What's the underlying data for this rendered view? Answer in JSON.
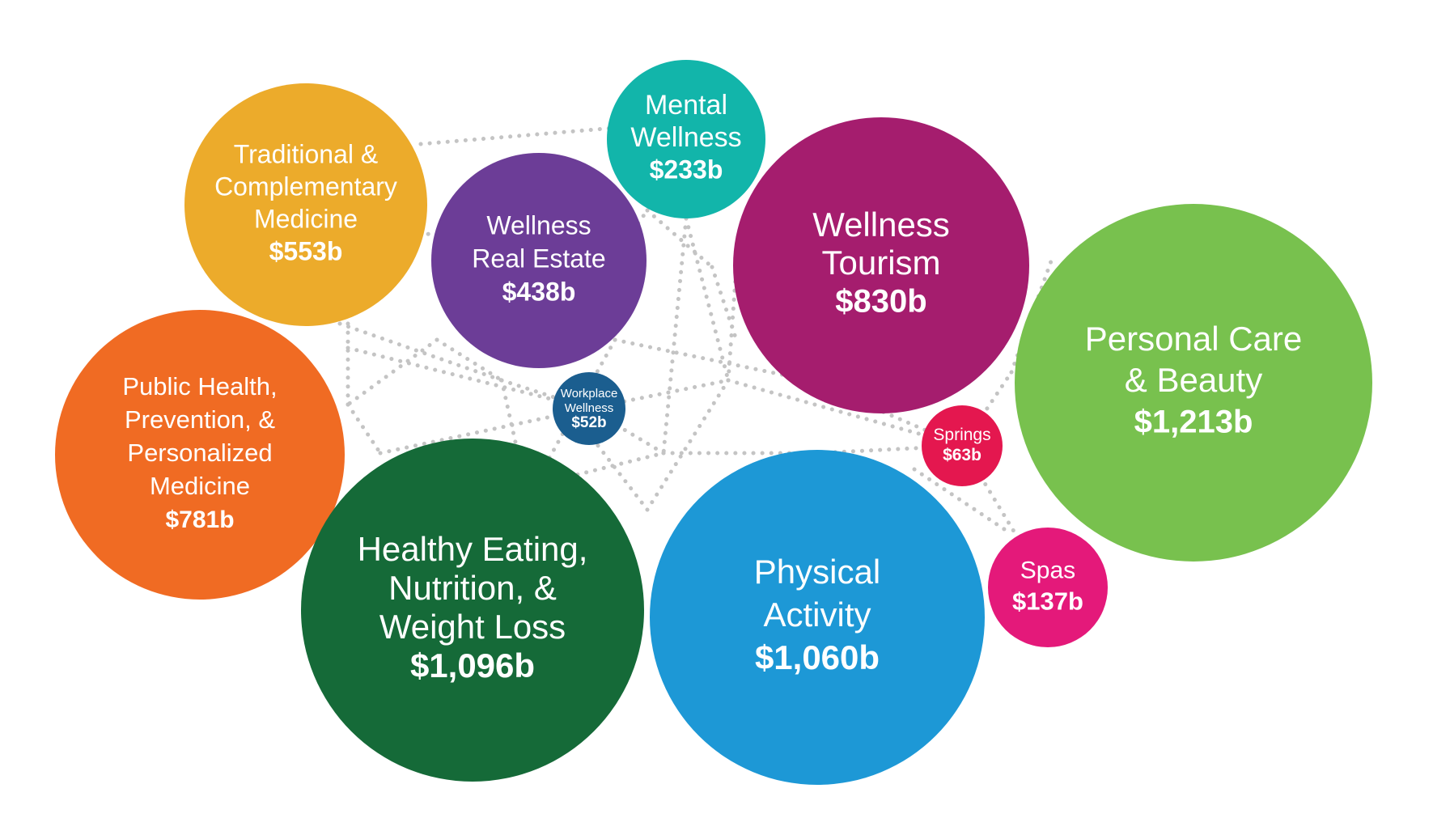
{
  "chart_data": {
    "type": "bubble",
    "title": "",
    "unit": "billions USD",
    "series": [
      {
        "key": "traditional",
        "label_lines": [
          "Traditional &",
          "Complementary",
          "Medicine"
        ],
        "value_label": "$553b",
        "value": 553,
        "color": "#ECAB2B"
      },
      {
        "key": "mental",
        "label_lines": [
          "Mental",
          "Wellness"
        ],
        "value_label": "$233b",
        "value": 233,
        "color": "#12B5AA"
      },
      {
        "key": "real-estate",
        "label_lines": [
          "Wellness",
          "Real Estate"
        ],
        "value_label": "$438b",
        "value": 438,
        "color": "#6C3D97"
      },
      {
        "key": "tourism",
        "label_lines": [
          "Wellness",
          "Tourism"
        ],
        "value_label": "$830b",
        "value": 830,
        "color": "#A51D6E"
      },
      {
        "key": "personal-care",
        "label_lines": [
          "Personal Care",
          "& Beauty"
        ],
        "value_label": "$1,213b",
        "value": 1213,
        "color": "#78C14E"
      },
      {
        "key": "public-health",
        "label_lines": [
          "Public Health,",
          "Prevention, &",
          "Personalized",
          "Medicine"
        ],
        "value_label": "$781b",
        "value": 781,
        "color": "#F06B23"
      },
      {
        "key": "workplace",
        "label_lines": [
          "Workplace",
          "Wellness"
        ],
        "value_label": "$52b",
        "value": 52,
        "color": "#1B5E8F"
      },
      {
        "key": "springs",
        "label_lines": [
          "Springs"
        ],
        "value_label": "$63b",
        "value": 63,
        "color": "#E4174F"
      },
      {
        "key": "healthy-eating",
        "label_lines": [
          "Healthy Eating,",
          "Nutrition, &",
          "Weight Loss"
        ],
        "value_label": "$1,096b",
        "value": 1096,
        "color": "#156A38"
      },
      {
        "key": "physical",
        "label_lines": [
          "Physical",
          "Activity"
        ],
        "value_label": "$1,060b",
        "value": 1060,
        "color": "#1D98D6"
      },
      {
        "key": "spas",
        "label_lines": [
          "Spas"
        ],
        "value_label": "$137b",
        "value": 137,
        "color": "#E4197A"
      }
    ]
  }
}
